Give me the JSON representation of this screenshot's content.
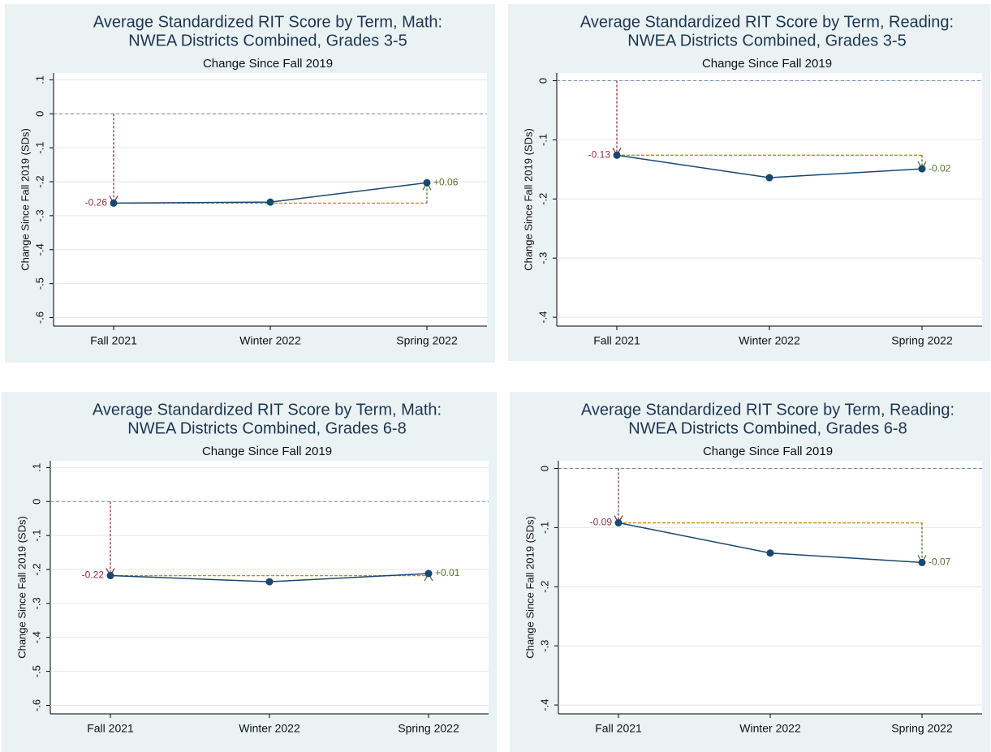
{
  "chart_data": [
    {
      "type": "line",
      "title": [
        "Average Standardized RIT Score by Term, Math:",
        "NWEA Districts Combined, Grades 3-5"
      ],
      "subtitle": "Change Since Fall 2019",
      "y_label": "Change Since Fall 2019 (SDs)",
      "categories": [
        "Fall 2021",
        "Winter 2022",
        "Spring 2022"
      ],
      "series": [
        {
          "color": "#1a476f",
          "values": [
            -0.263,
            -0.26,
            -0.203
          ]
        }
      ],
      "ylim": [
        -0.625,
        0.12
      ],
      "yticks": [
        {
          "value": 0.1,
          "label": ".1"
        },
        0,
        {
          "value": -0.1,
          "label": "-.1"
        },
        {
          "value": -0.2,
          "label": "-.2"
        },
        {
          "value": -0.3,
          "label": "-.3"
        },
        {
          "value": -0.4,
          "label": "-.4"
        },
        {
          "value": -0.5,
          "label": "-.5"
        },
        {
          "value": -0.6,
          "label": "-.6"
        }
      ],
      "grid": true,
      "drop_label": {
        "value": -0.26,
        "label": "-0.26"
      },
      "drop_color": "#90353b",
      "change_label": {
        "value": 0.06,
        "label": "+0.06"
      },
      "change_color": "#55752f",
      "level_color": "#d08a00"
    },
    {
      "type": "line",
      "title": [
        "Average Standardized RIT Score by Term, Reading:",
        "NWEA Districts Combined, Grades 3-5"
      ],
      "subtitle": "Change Since Fall 2019",
      "y_label": "Change Since Fall 2019 (SDs)",
      "categories": [
        "Fall 2021",
        "Winter 2022",
        "Spring 2022"
      ],
      "series": [
        {
          "color": "#1a476f",
          "values": [
            -0.126,
            -0.164,
            -0.149
          ]
        }
      ],
      "ylim": [
        -0.415,
        0.013
      ],
      "yticks": [
        0,
        {
          "value": -0.1,
          "label": "-.1"
        },
        {
          "value": -0.2,
          "label": "-.2"
        },
        {
          "value": -0.3,
          "label": "-.3"
        },
        {
          "value": -0.4,
          "label": "-.4"
        }
      ],
      "grid": true,
      "drop_label": {
        "value": -0.13,
        "label": "-0.13"
      },
      "drop_color": "#90353b",
      "change_label": {
        "value": -0.02,
        "label": "-0.02"
      },
      "change_color": "#55752f",
      "level_color": "#d08a00"
    },
    {
      "type": "line",
      "title": [
        "Average Standardized RIT Score by Term, Math:",
        "NWEA Districts Combined, Grades 6-8"
      ],
      "subtitle": "Change Since Fall 2019",
      "y_label": "Change Since Fall 2019 (SDs)",
      "categories": [
        "Fall 2021",
        "Winter 2022",
        "Spring 2022"
      ],
      "series": [
        {
          "color": "#1a476f",
          "values": [
            -0.218,
            -0.236,
            -0.212
          ]
        }
      ],
      "ylim": [
        -0.625,
        0.12
      ],
      "yticks": [
        {
          "value": 0.1,
          "label": ".1"
        },
        0,
        {
          "value": -0.1,
          "label": "-.1"
        },
        {
          "value": -0.2,
          "label": "-.2"
        },
        {
          "value": -0.3,
          "label": "-.3"
        },
        {
          "value": -0.4,
          "label": "-.4"
        },
        {
          "value": -0.5,
          "label": "-.5"
        },
        {
          "value": -0.6,
          "label": "-.6"
        }
      ],
      "grid": true,
      "drop_label": {
        "value": -0.22,
        "label": "-0.22"
      },
      "drop_color": "#90353b",
      "change_label": {
        "value": 0.01,
        "label": "+0.01"
      },
      "change_color": "#55752f",
      "level_color": "#d08a00"
    },
    {
      "type": "line",
      "title": [
        "Average Standardized RIT Score by Term, Reading:",
        "NWEA Districts Combined, Grades 6-8"
      ],
      "subtitle": "Change Since Fall 2019",
      "y_label": "Change Since Fall 2019 (SDs)",
      "categories": [
        "Fall 2021",
        "Winter 2022",
        "Spring 2022"
      ],
      "series": [
        {
          "color": "#1a476f",
          "values": [
            -0.092,
            -0.143,
            -0.159
          ]
        }
      ],
      "ylim": [
        -0.415,
        0.013
      ],
      "yticks": [
        0,
        {
          "value": -0.1,
          "label": "-.1"
        },
        {
          "value": -0.2,
          "label": "-.2"
        },
        {
          "value": -0.3,
          "label": "-.3"
        },
        {
          "value": -0.4,
          "label": "-.4"
        }
      ],
      "grid": true,
      "drop_label": {
        "value": -0.09,
        "label": "-0.09"
      },
      "drop_color": "#90353b",
      "change_label": {
        "value": -0.07,
        "label": "-0.07"
      },
      "change_color": "#55752f",
      "level_color": "#d08a00"
    }
  ]
}
